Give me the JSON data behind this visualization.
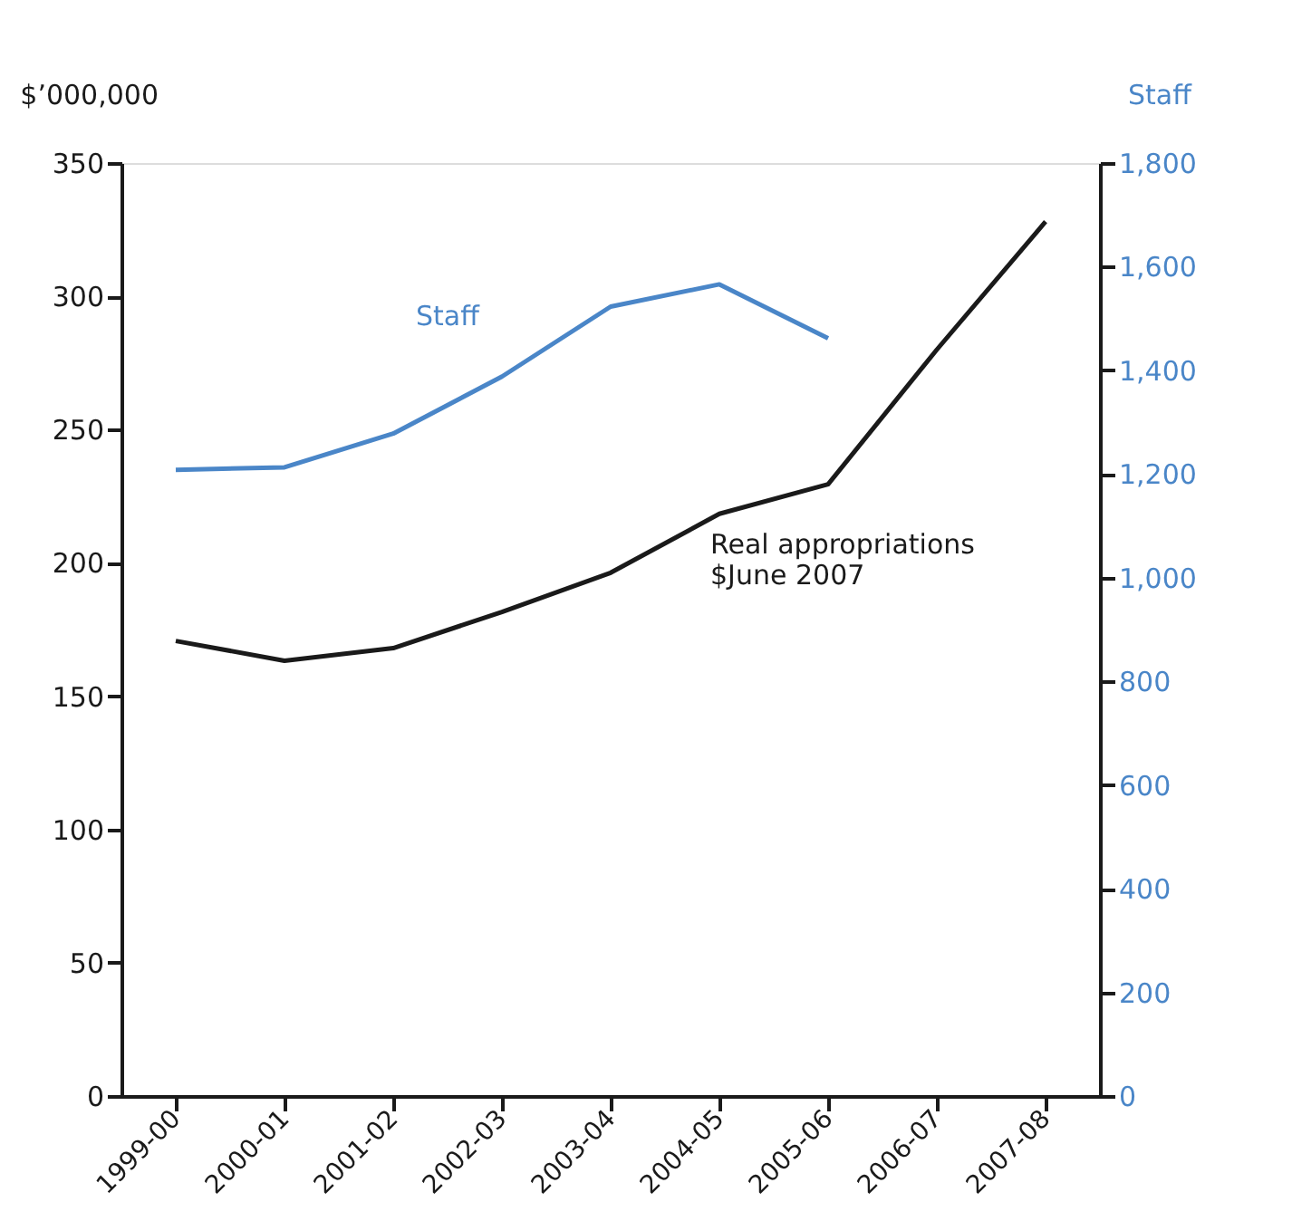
{
  "chart_data": {
    "type": "line",
    "categories": [
      "1999-00",
      "2000-01",
      "2001-02",
      "2002-03",
      "2003-04",
      "2004-05",
      "2005-06",
      "2006-07",
      "2007-08"
    ],
    "ylabel": "$’000,000",
    "y2label": "Staff",
    "series": [
      {
        "name": "Real appropriations\n$June 2007",
        "color": "#1a1a1a",
        "values": [
          170.7,
          163.3,
          168,
          181.6,
          196.3,
          218.4,
          229.5,
          280,
          328
        ]
      },
      {
        "name": "Staff",
        "color": "#4a86c8",
        "axis": "y2",
        "values": [
          1208,
          1213,
          1278,
          1388,
          1523,
          1566,
          1462,
          null,
          null
        ]
      }
    ],
    "ylim": [
      0,
      350
    ],
    "yticks": [
      0,
      50,
      100,
      150,
      200,
      250,
      300,
      350
    ],
    "y2lim": [
      0,
      1800
    ],
    "y2ticks": [
      0,
      200,
      400,
      600,
      800,
      {
        "value": 1000,
        "label": "1,000"
      },
      {
        "value": 1200,
        "label": "1,200"
      },
      {
        "value": 1400,
        "label": "1,400"
      },
      {
        "value": 1600,
        "label": "1,600"
      },
      {
        "value": 1800,
        "label": "1,800"
      }
    ],
    "marker": "none",
    "line_style": "solid"
  }
}
